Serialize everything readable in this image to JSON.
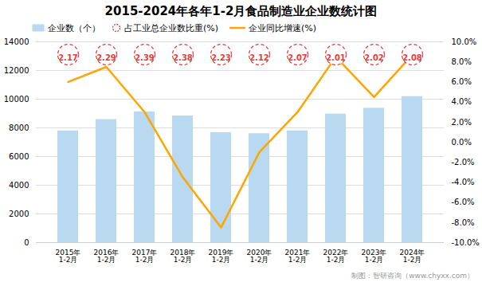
{
  "chart_data": {
    "type": "bar",
    "title": "2015-2024年各年1-2月食品制造业企业数统计图",
    "categories": [
      "2015年\n1-2月",
      "2016年\n1-2月",
      "2017年\n1-2月",
      "2018年\n1-2月",
      "2019年\n1-2月",
      "2020年\n1-2月",
      "2021年\n1-2月",
      "2022年\n1-2月",
      "2023年\n1-2月",
      "2024年\n1-2月"
    ],
    "series": [
      {
        "name": "企业数（个）",
        "type": "bar",
        "color": "#b8d9f0",
        "values": [
          7791,
          8583,
          9119,
          8829,
          7671,
          7598,
          7796,
          8963,
          9370,
          10181
        ]
      },
      {
        "name": "占工业总企业数比重(%)",
        "type": "label",
        "marker": "circle",
        "line_style": "dashed",
        "color": "#e04040",
        "data_labels": true,
        "values": [
          2.17,
          2.29,
          2.39,
          2.38,
          2.23,
          2.12,
          2.07,
          2.01,
          2.02,
          2.08
        ]
      },
      {
        "name": "企业同比增速(%)",
        "type": "line",
        "axis": "y2",
        "color": "#FFA500",
        "values": [
          6.0,
          7.5,
          3.0,
          -3.5,
          -8.5,
          -1.0,
          3.0,
          8.5,
          4.5,
          8.7
        ]
      }
    ],
    "ylim": [
      0,
      14000
    ],
    "yticks": [
      0,
      2000,
      4000,
      6000,
      8000,
      10000,
      12000,
      14000
    ],
    "y2lim": [
      -10.0,
      10.0
    ],
    "y2ticks": [
      {
        "value": -10.0,
        "label": "-10.0%"
      },
      {
        "value": -8.0,
        "label": "-8.0%"
      },
      {
        "value": -6.0,
        "label": "-6.0%"
      },
      {
        "value": -4.0,
        "label": "-4.0%"
      },
      {
        "value": -2.0,
        "label": "-2.0%"
      },
      {
        "value": 0.0,
        "label": "0.0%"
      },
      {
        "value": 2.0,
        "label": "2.0%"
      },
      {
        "value": 4.0,
        "label": "4.0%"
      },
      {
        "value": 6.0,
        "label": "6.0%"
      },
      {
        "value": 8.0,
        "label": "8.0%"
      },
      {
        "value": 10.0,
        "label": "10.0%"
      }
    ],
    "grid": true,
    "legend": "upper left",
    "caption": "制图：智研咨询（www.chyxx.com）"
  }
}
